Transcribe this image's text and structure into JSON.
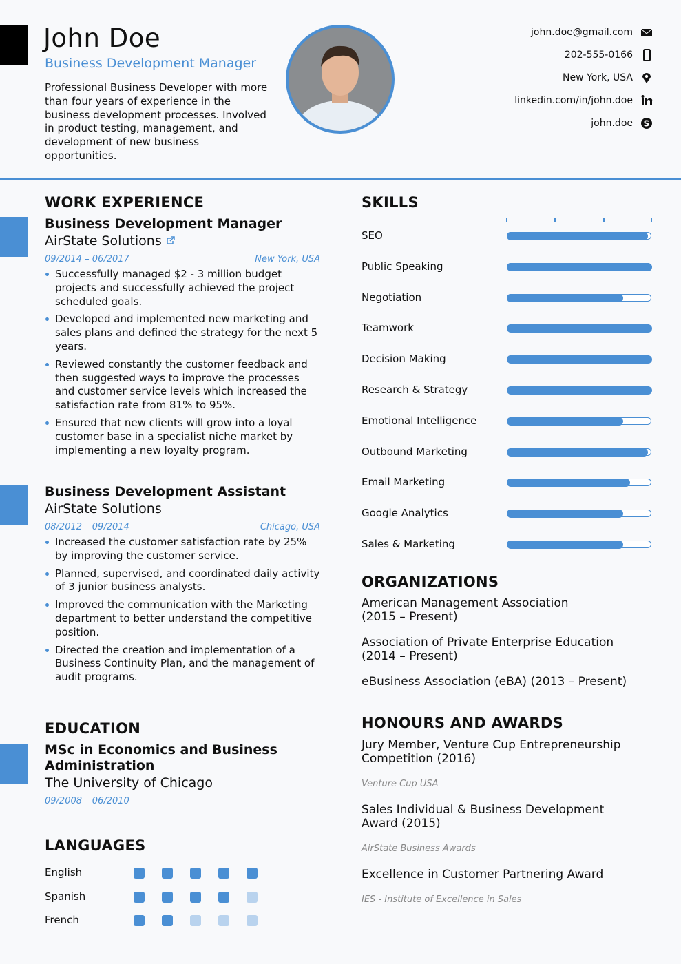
{
  "header": {
    "name": "John Doe",
    "title": "Business Development Manager",
    "summary": "Professional Business Developer with more than four years of experience in the business development processes. Involved in product testing, management, and development of new business opportunities.",
    "contacts": [
      "john.doe@gmail.com",
      "202-555-0166",
      "New York, USA",
      "linkedin.com/in/john.doe",
      "john.doe"
    ]
  },
  "work_experience": {
    "title": "WORK EXPERIENCE",
    "jobs": [
      {
        "position": "Business Development Manager",
        "company": "AirState Solutions",
        "dates": "09/2014 – 06/2017",
        "location": "New York, USA",
        "bullets": [
          "Successfully managed $2 - 3 million budget projects and successfully achieved the project scheduled goals.",
          "Developed and implemented new marketing and sales plans and defined the strategy for the next 5 years.",
          "Reviewed constantly the customer feedback and then suggested ways to improve the processes and customer service levels which increased the satisfaction rate from 81% to 95%.",
          "Ensured that new clients will grow into a loyal customer base in a specialist niche market by implementing a new loyalty program."
        ]
      },
      {
        "position": "Business Development Assistant",
        "company": "AirState Solutions",
        "dates": "08/2012 – 09/2014",
        "location": "Chicago, USA",
        "bullets": [
          "Increased the customer satisfaction rate by 25% by improving the customer service.",
          "Planned, supervised, and coordinated daily activity of 3 junior business analysts.",
          "Improved the communication with the Marketing department to better understand the competitive position.",
          "Directed the creation and implementation of a Business Continuity Plan, and the management of audit programs."
        ]
      }
    ]
  },
  "education": {
    "title": "EDUCATION",
    "degree": "MSc in Economics and Business Administration",
    "school": "The University of Chicago",
    "dates": "09/2008 – 06/2010"
  },
  "languages": {
    "title": "LANGUAGES",
    "scale": 5,
    "items": [
      {
        "name": "English",
        "level": 5
      },
      {
        "name": "Spanish",
        "level": 4
      },
      {
        "name": "French",
        "level": 2
      }
    ]
  },
  "skills": {
    "title": "SKILLS",
    "scale": 100,
    "items": [
      {
        "name": "SEO",
        "level": 97
      },
      {
        "name": "Public Speaking",
        "level": 100
      },
      {
        "name": "Negotiation",
        "level": 80
      },
      {
        "name": "Teamwork",
        "level": 100
      },
      {
        "name": "Decision Making",
        "level": 100
      },
      {
        "name": "Research & Strategy",
        "level": 100
      },
      {
        "name": "Emotional Intelligence",
        "level": 80
      },
      {
        "name": "Outbound Marketing",
        "level": 97
      },
      {
        "name": "Email Marketing",
        "level": 85
      },
      {
        "name": "Google Analytics",
        "level": 80
      },
      {
        "name": "Sales & Marketing",
        "level": 80
      }
    ]
  },
  "organizations": {
    "title": "ORGANIZATIONS",
    "items": [
      {
        "name": "American Management Association",
        "period": "(2015 – Present)"
      },
      {
        "name": "Association of Private Enterprise Education",
        "period": "(2014 – Present)"
      },
      {
        "name": "eBusiness Association (eBA)",
        "period": "(2013 – Present)"
      }
    ]
  },
  "awards": {
    "title": "HONOURS AND AWARDS",
    "items": [
      {
        "title": "Jury Member, Venture Cup Entrepreneurship Competition (2016)",
        "issuer": "Venture Cup USA"
      },
      {
        "title": "Sales Individual & Business Development Award (2015)",
        "issuer": "AirState Business Awards"
      },
      {
        "title": "Excellence in Customer Partnering Award",
        "issuer": "IES - Institute of Excellence in Sales"
      }
    ]
  }
}
